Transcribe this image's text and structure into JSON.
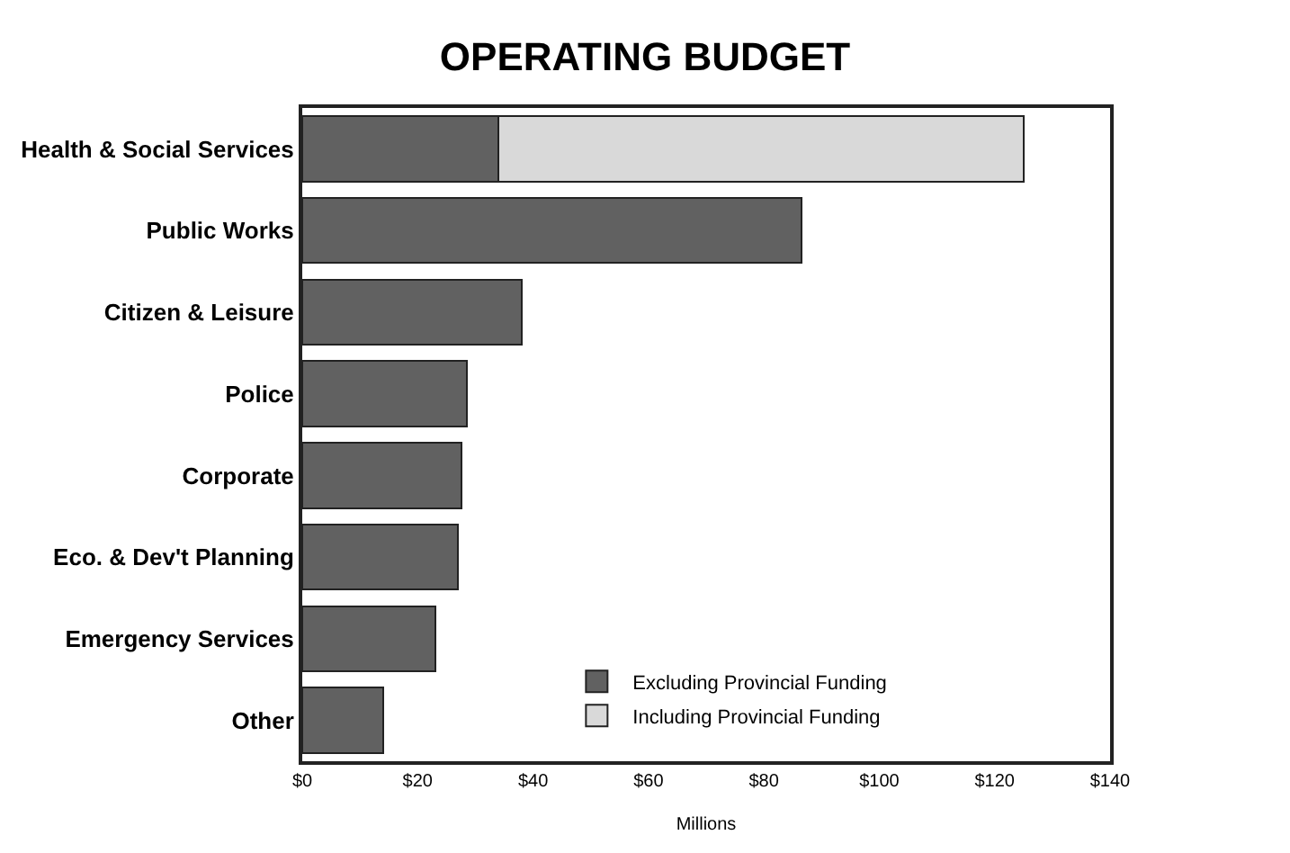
{
  "chart_data": {
    "type": "bar",
    "orientation": "horizontal",
    "stacked": true,
    "title": "OPERATING BUDGET",
    "xlabel": "Millions",
    "categories": [
      "Health & Social Services",
      "Public Works",
      "Citizen & Leisure",
      "Police",
      "Corporate",
      "Eco. & Dev't Planning",
      "Emergency Services",
      "Other"
    ],
    "series": [
      {
        "name": "Excluding Provincial Funding",
        "color": "#616161",
        "values": [
          34,
          86.5,
          38,
          28.5,
          27.6,
          27,
          23,
          14
        ]
      },
      {
        "name": "Including Provincial Funding",
        "color": "#d9d9d9",
        "values": [
          91,
          null,
          null,
          null,
          null,
          null,
          null,
          null
        ]
      }
    ],
    "xlim": [
      0,
      140
    ],
    "xticks": [
      {
        "value": 0,
        "label": "$0"
      },
      {
        "value": 20,
        "label": "$20"
      },
      {
        "value": 40,
        "label": "$40"
      },
      {
        "value": 60,
        "label": "$60"
      },
      {
        "value": 80,
        "label": "$80"
      },
      {
        "value": 100,
        "label": "$100"
      },
      {
        "value": 120,
        "label": "$120"
      },
      {
        "value": 140,
        "label": "$140"
      }
    ],
    "legend": "bottom right"
  }
}
